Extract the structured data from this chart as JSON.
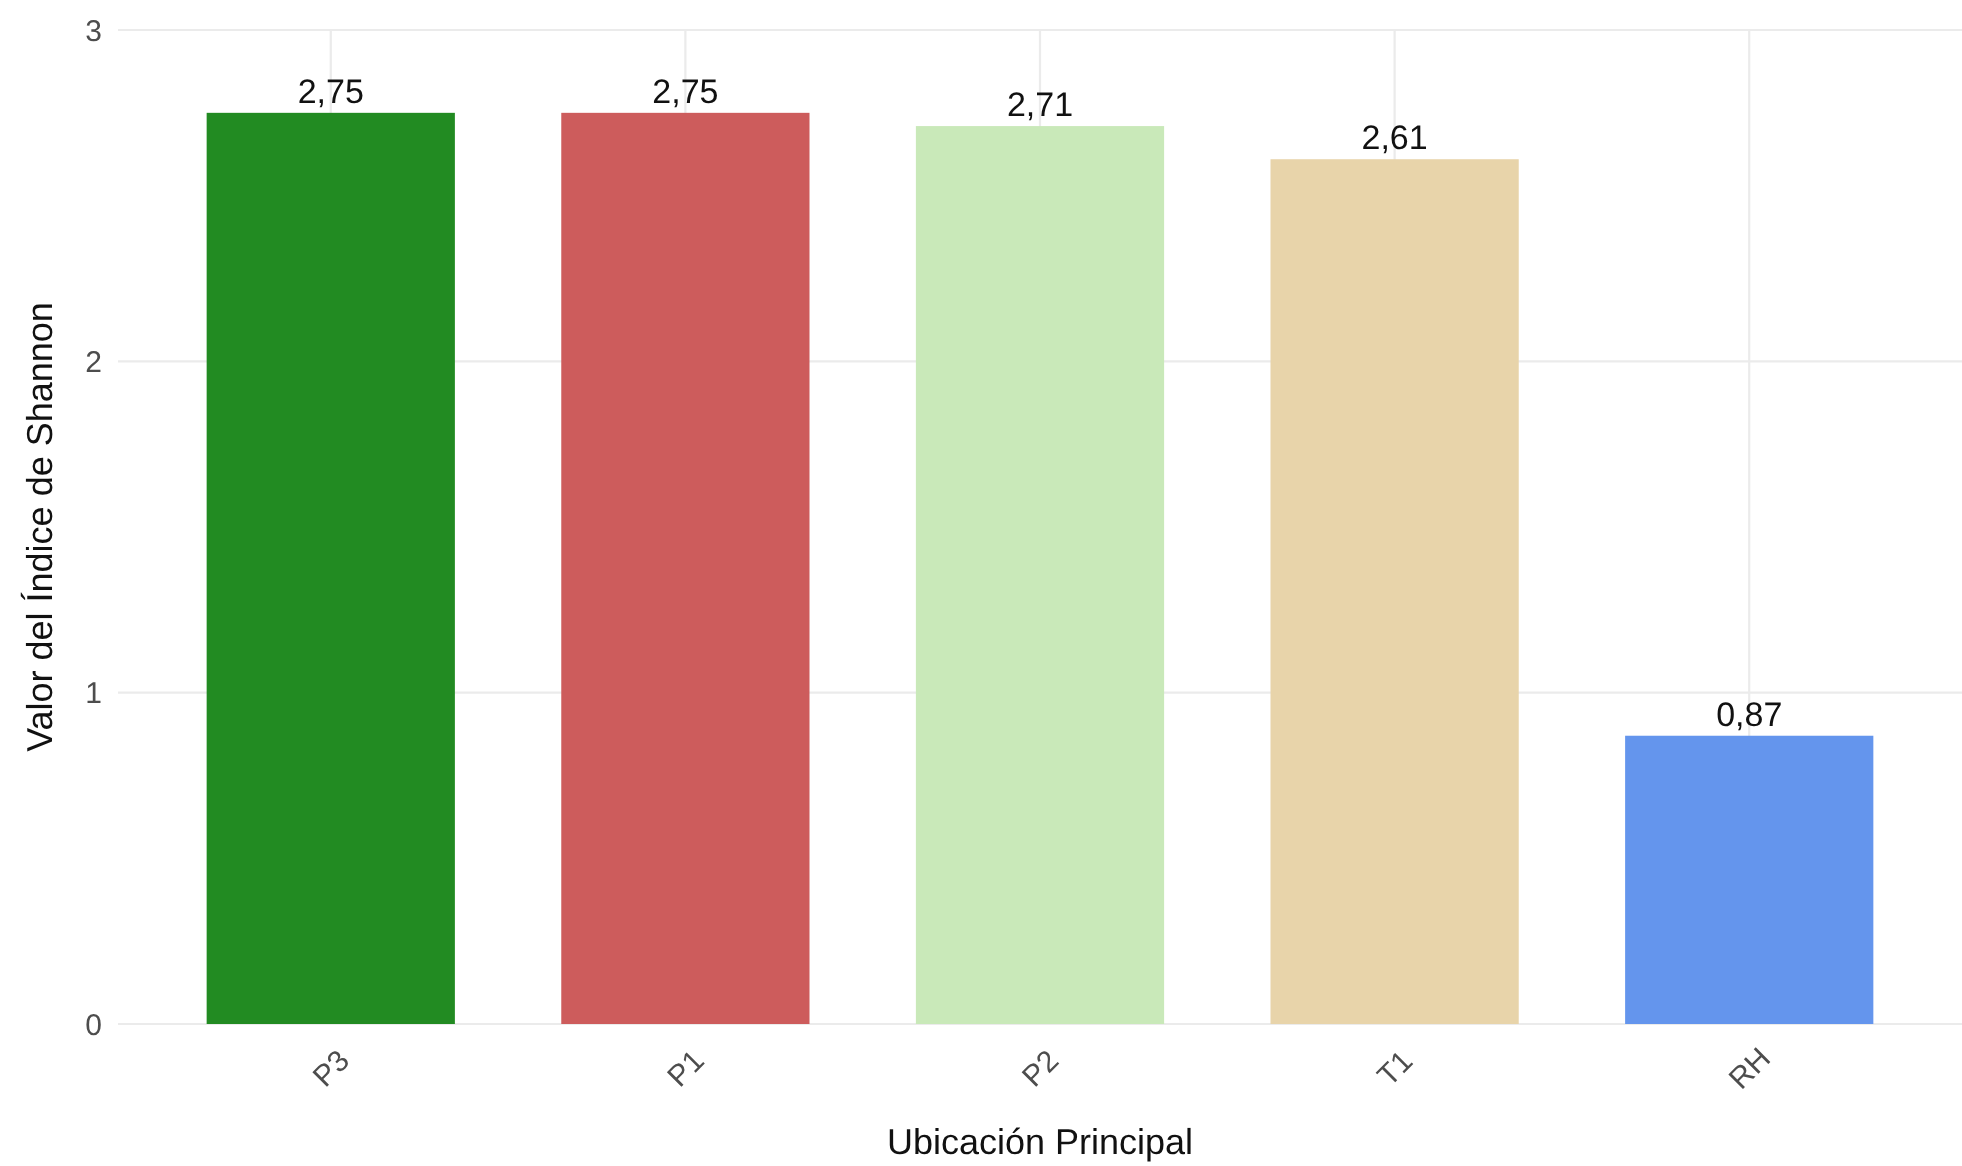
{
  "chart_data": {
    "type": "bar",
    "xlabel": "Ubicación Principal",
    "ylabel": "Valor del Índice de Shannon",
    "categories": [
      "P3",
      "P1",
      "P2",
      "T1",
      "RH"
    ],
    "values": [
      2.75,
      2.75,
      2.71,
      2.61,
      0.87
    ],
    "value_labels": [
      "2,75",
      "2,75",
      "2,71",
      "2,61",
      "0,87"
    ],
    "colors": [
      "#228b22",
      "#cd5c5c",
      "#c9e9b9",
      "#e8d4aa",
      "#6495ed"
    ],
    "ylim": [
      0,
      3
    ],
    "yticks": [
      0,
      1,
      2,
      3
    ],
    "grid": true
  }
}
